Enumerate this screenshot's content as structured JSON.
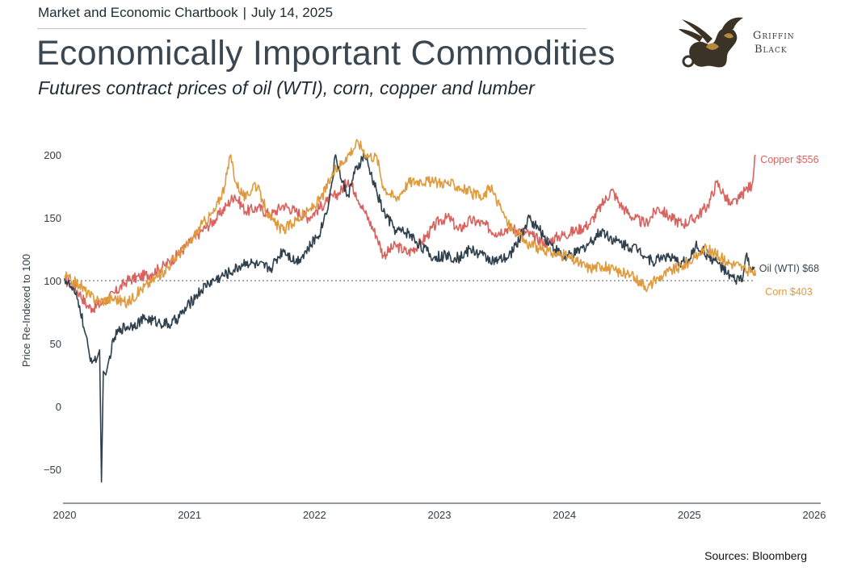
{
  "header": {
    "chartbook": "Market and Economic Chartbook",
    "separator": "|",
    "date": "July 14, 2025"
  },
  "title": "Economically Important Commodities",
  "subtitle": "Futures contract prices of oil (WTI), corn, copper and lumber",
  "logo": {
    "icon": "griffin-icon",
    "line1": "Griffin",
    "line2": "Black"
  },
  "sources": "Sources: Bloomberg",
  "chart_data": {
    "type": "line",
    "title": "Economically Important Commodities",
    "subtitle": "Futures contract prices of oil (WTI), corn, copper and lumber",
    "xlabel": "",
    "ylabel": "Price Re-Indexed to 100",
    "xlim": [
      2020,
      2026
    ],
    "ylim": [
      -62,
      225
    ],
    "x_ticks": [
      "2020",
      "2021",
      "2022",
      "2023",
      "2024",
      "2025",
      "2026"
    ],
    "y_ticks": [
      "200",
      "150",
      "100",
      "50",
      "0",
      "−50"
    ],
    "y_tick_values": [
      200,
      150,
      100,
      50,
      0,
      -50
    ],
    "reference_line": {
      "y": 100,
      "style": "dotted"
    },
    "grid": false,
    "legend": "inline-right",
    "series": [
      {
        "name": "Copper",
        "end_label": "Copper $556",
        "color": "#d9625e",
        "points": [
          [
            2020.0,
            100
          ],
          [
            2020.05,
            98
          ],
          [
            2020.12,
            90
          ],
          [
            2020.18,
            80
          ],
          [
            2020.22,
            78
          ],
          [
            2020.3,
            82
          ],
          [
            2020.4,
            90
          ],
          [
            2020.5,
            100
          ],
          [
            2020.6,
            103
          ],
          [
            2020.7,
            106
          ],
          [
            2020.8,
            112
          ],
          [
            2020.9,
            120
          ],
          [
            2021.0,
            130
          ],
          [
            2021.1,
            140
          ],
          [
            2021.2,
            148
          ],
          [
            2021.3,
            160
          ],
          [
            2021.36,
            168
          ],
          [
            2021.45,
            155
          ],
          [
            2021.55,
            158
          ],
          [
            2021.65,
            152
          ],
          [
            2021.75,
            160
          ],
          [
            2021.85,
            155
          ],
          [
            2021.95,
            150
          ],
          [
            2022.1,
            163
          ],
          [
            2022.2,
            170
          ],
          [
            2022.27,
            180
          ],
          [
            2022.33,
            170
          ],
          [
            2022.4,
            155
          ],
          [
            2022.5,
            135
          ],
          [
            2022.55,
            120
          ],
          [
            2022.65,
            128
          ],
          [
            2022.75,
            122
          ],
          [
            2022.85,
            130
          ],
          [
            2023.0,
            148
          ],
          [
            2023.08,
            150
          ],
          [
            2023.15,
            140
          ],
          [
            2023.25,
            148
          ],
          [
            2023.35,
            145
          ],
          [
            2023.45,
            138
          ],
          [
            2023.55,
            142
          ],
          [
            2023.65,
            140
          ],
          [
            2023.75,
            135
          ],
          [
            2023.85,
            130
          ],
          [
            2023.95,
            135
          ],
          [
            2024.1,
            140
          ],
          [
            2024.2,
            145
          ],
          [
            2024.3,
            160
          ],
          [
            2024.38,
            172
          ],
          [
            2024.45,
            160
          ],
          [
            2024.55,
            150
          ],
          [
            2024.65,
            145
          ],
          [
            2024.75,
            158
          ],
          [
            2024.85,
            150
          ],
          [
            2024.95,
            145
          ],
          [
            2025.05,
            150
          ],
          [
            2025.15,
            160
          ],
          [
            2025.22,
            178
          ],
          [
            2025.28,
            168
          ],
          [
            2025.33,
            160
          ],
          [
            2025.4,
            165
          ],
          [
            2025.45,
            172
          ],
          [
            2025.5,
            176
          ],
          [
            2025.53,
            200
          ]
        ]
      },
      {
        "name": "Oil (WTI)",
        "end_label": "Oil (WTI) $68",
        "color": "#2f3f4b",
        "points": [
          [
            2020.0,
            102
          ],
          [
            2020.04,
            96
          ],
          [
            2020.08,
            90
          ],
          [
            2020.12,
            80
          ],
          [
            2020.16,
            60
          ],
          [
            2020.2,
            40
          ],
          [
            2020.25,
            35
          ],
          [
            2020.28,
            45
          ],
          [
            2020.295,
            -60
          ],
          [
            2020.31,
            28
          ],
          [
            2020.33,
            25
          ],
          [
            2020.36,
            40
          ],
          [
            2020.4,
            55
          ],
          [
            2020.45,
            62
          ],
          [
            2020.55,
            65
          ],
          [
            2020.65,
            70
          ],
          [
            2020.75,
            67
          ],
          [
            2020.85,
            65
          ],
          [
            2020.95,
            75
          ],
          [
            2021.05,
            88
          ],
          [
            2021.15,
            98
          ],
          [
            2021.25,
            103
          ],
          [
            2021.35,
            108
          ],
          [
            2021.45,
            115
          ],
          [
            2021.55,
            112
          ],
          [
            2021.65,
            110
          ],
          [
            2021.75,
            125
          ],
          [
            2021.85,
            115
          ],
          [
            2021.95,
            125
          ],
          [
            2022.05,
            140
          ],
          [
            2022.12,
            165
          ],
          [
            2022.17,
            200
          ],
          [
            2022.22,
            178
          ],
          [
            2022.27,
            168
          ],
          [
            2022.32,
            185
          ],
          [
            2022.4,
            200
          ],
          [
            2022.45,
            185
          ],
          [
            2022.5,
            170
          ],
          [
            2022.55,
            155
          ],
          [
            2022.65,
            140
          ],
          [
            2022.75,
            138
          ],
          [
            2022.85,
            128
          ],
          [
            2022.95,
            118
          ],
          [
            2023.05,
            120
          ],
          [
            2023.15,
            118
          ],
          [
            2023.25,
            125
          ],
          [
            2023.35,
            120
          ],
          [
            2023.45,
            115
          ],
          [
            2023.55,
            118
          ],
          [
            2023.65,
            135
          ],
          [
            2023.72,
            150
          ],
          [
            2023.8,
            140
          ],
          [
            2023.9,
            128
          ],
          [
            2024.0,
            118
          ],
          [
            2024.1,
            122
          ],
          [
            2024.2,
            130
          ],
          [
            2024.3,
            140
          ],
          [
            2024.4,
            132
          ],
          [
            2024.5,
            128
          ],
          [
            2024.6,
            125
          ],
          [
            2024.7,
            115
          ],
          [
            2024.8,
            120
          ],
          [
            2024.9,
            115
          ],
          [
            2025.0,
            115
          ],
          [
            2025.05,
            128
          ],
          [
            2025.15,
            120
          ],
          [
            2025.25,
            112
          ],
          [
            2025.3,
            105
          ],
          [
            2025.37,
            100
          ],
          [
            2025.43,
            103
          ],
          [
            2025.46,
            122
          ],
          [
            2025.48,
            110
          ],
          [
            2025.52,
            111
          ]
        ]
      },
      {
        "name": "Corn",
        "end_label": "Corn $403",
        "color": "#e09a3e",
        "points": [
          [
            2020.0,
            104
          ],
          [
            2020.05,
            100
          ],
          [
            2020.12,
            97
          ],
          [
            2020.2,
            88
          ],
          [
            2020.28,
            84
          ],
          [
            2020.4,
            86
          ],
          [
            2020.5,
            82
          ],
          [
            2020.6,
            92
          ],
          [
            2020.7,
            100
          ],
          [
            2020.8,
            108
          ],
          [
            2020.9,
            120
          ],
          [
            2021.0,
            130
          ],
          [
            2021.1,
            145
          ],
          [
            2021.2,
            155
          ],
          [
            2021.28,
            175
          ],
          [
            2021.33,
            200
          ],
          [
            2021.37,
            178
          ],
          [
            2021.45,
            165
          ],
          [
            2021.52,
            178
          ],
          [
            2021.58,
            165
          ],
          [
            2021.65,
            148
          ],
          [
            2021.75,
            140
          ],
          [
            2021.85,
            148
          ],
          [
            2021.95,
            155
          ],
          [
            2022.05,
            165
          ],
          [
            2022.15,
            185
          ],
          [
            2022.25,
            198
          ],
          [
            2022.35,
            210
          ],
          [
            2022.42,
            200
          ],
          [
            2022.5,
            198
          ],
          [
            2022.55,
            175
          ],
          [
            2022.65,
            165
          ],
          [
            2022.75,
            178
          ],
          [
            2022.85,
            180
          ],
          [
            2022.95,
            178
          ],
          [
            2023.05,
            178
          ],
          [
            2023.15,
            175
          ],
          [
            2023.25,
            170
          ],
          [
            2023.35,
            165
          ],
          [
            2023.4,
            175
          ],
          [
            2023.48,
            160
          ],
          [
            2023.55,
            145
          ],
          [
            2023.62,
            138
          ],
          [
            2023.7,
            130
          ],
          [
            2023.8,
            125
          ],
          [
            2023.9,
            122
          ],
          [
            2024.0,
            120
          ],
          [
            2024.1,
            115
          ],
          [
            2024.2,
            110
          ],
          [
            2024.3,
            112
          ],
          [
            2024.4,
            108
          ],
          [
            2024.5,
            105
          ],
          [
            2024.6,
            100
          ],
          [
            2024.67,
            95
          ],
          [
            2024.75,
            102
          ],
          [
            2024.85,
            108
          ],
          [
            2024.95,
            112
          ],
          [
            2025.05,
            118
          ],
          [
            2025.12,
            126
          ],
          [
            2025.2,
            122
          ],
          [
            2025.3,
            115
          ],
          [
            2025.4,
            112
          ],
          [
            2025.45,
            108
          ],
          [
            2025.5,
            107
          ],
          [
            2025.53,
            104
          ]
        ]
      }
    ]
  }
}
